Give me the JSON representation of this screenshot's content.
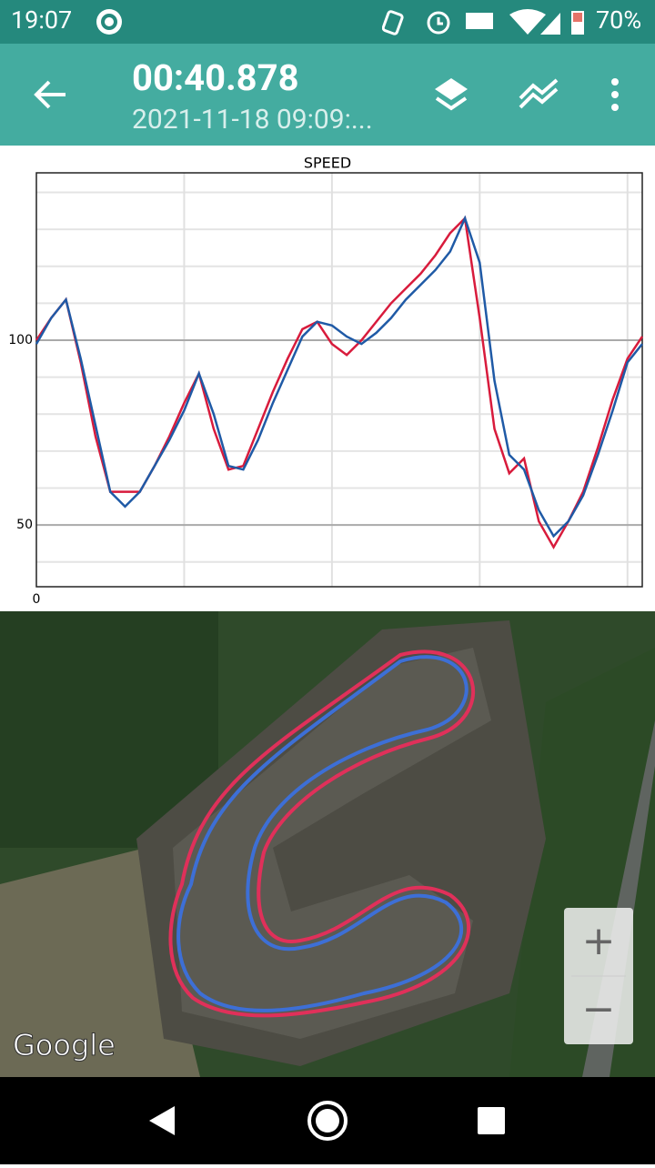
{
  "status_bar": {
    "time": "19:07",
    "battery": "70%"
  },
  "app_bar": {
    "title": "00:40.878",
    "subtitle": "2021-11-18 09:09:..."
  },
  "chart_data": {
    "type": "line",
    "title": "SPEED",
    "x": [
      0,
      1,
      2,
      3,
      4,
      5,
      6,
      7,
      8,
      9,
      10,
      11,
      12,
      13,
      14,
      15,
      16,
      17,
      18,
      19,
      20,
      21,
      22,
      23,
      24,
      25,
      26,
      27,
      28,
      29,
      30,
      31,
      32,
      33,
      34,
      35,
      36,
      37,
      38,
      39,
      40,
      41
    ],
    "series": [
      {
        "color": "#d81b3c",
        "values": [
          100,
          106,
          111,
          94,
          74,
          59,
          59,
          59,
          66,
          74,
          83,
          91,
          76,
          65,
          66,
          76,
          86,
          95,
          103,
          105,
          99,
          96,
          100,
          105,
          110,
          114,
          118,
          123,
          129,
          133,
          106,
          76,
          64,
          68,
          51,
          44,
          51,
          59,
          71,
          84,
          95,
          101
        ]
      },
      {
        "color": "#1f5aa6",
        "values": [
          99,
          106,
          111,
          95,
          77,
          59,
          55,
          59,
          66,
          73,
          81,
          91,
          80,
          66,
          65,
          73,
          83,
          92,
          101,
          105,
          104,
          101,
          99,
          102,
          106,
          111,
          115,
          119,
          124,
          133,
          121,
          89,
          69,
          65,
          54,
          47,
          51,
          58,
          69,
          81,
          94,
          99
        ]
      }
    ],
    "xlim": [
      0,
      41
    ],
    "xticks": [
      0
    ],
    "xgrid": [
      10,
      20,
      30,
      40
    ],
    "ylim": [
      33.3,
      145.3
    ],
    "yticks": [
      50,
      100
    ],
    "ygrid": [
      40,
      60,
      70,
      80,
      90,
      110,
      120,
      130,
      140
    ]
  },
  "map": {
    "logo": "Google",
    "zoom_in": "+",
    "zoom_out": "−"
  }
}
